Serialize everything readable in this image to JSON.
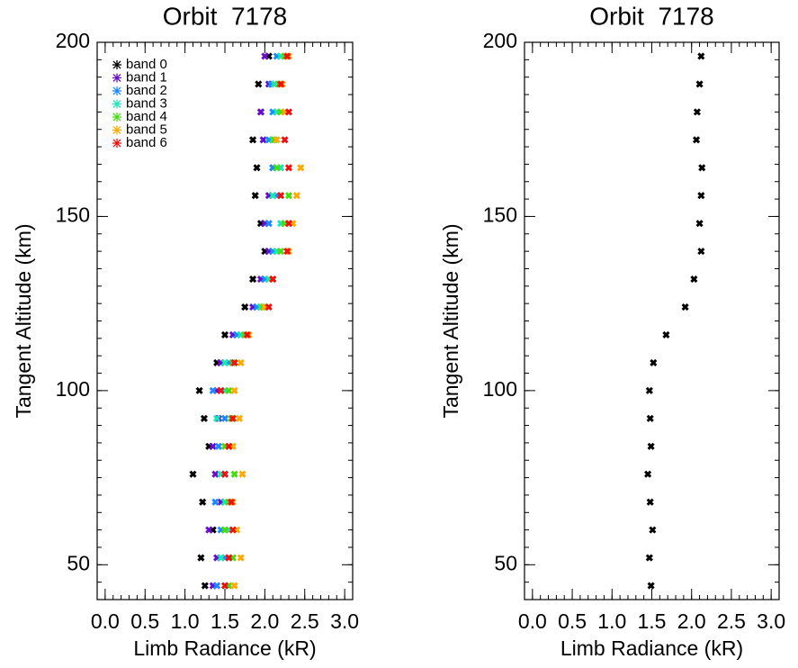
{
  "chart_data": [
    {
      "type": "scatter",
      "title": "Orbit  7178",
      "xlabel": "Limb Radiance (kR)",
      "ylabel": "Tangent Altitude (km)",
      "xlim": [
        -0.1,
        3.1
      ],
      "ylim": [
        40,
        200
      ],
      "xticks": [
        {
          "value": 0,
          "label": "0.0"
        },
        0.5,
        {
          "value": 1,
          "label": "1.0"
        },
        1.5,
        {
          "value": 2,
          "label": "2.0"
        },
        2.5,
        {
          "value": 3,
          "label": "3.0"
        }
      ],
      "yticks": [
        50,
        100,
        150,
        200
      ],
      "legend": "upper left",
      "y": [
        44,
        52,
        60,
        68,
        76,
        84,
        92,
        100,
        108,
        116,
        124,
        132,
        140,
        148,
        156,
        164,
        172,
        180,
        188,
        196
      ],
      "series": [
        {
          "name": "band 0",
          "color": "#000000",
          "x": [
            1.25,
            1.2,
            1.35,
            1.22,
            1.1,
            1.3,
            1.24,
            1.18,
            1.4,
            1.5,
            1.75,
            1.85,
            2.0,
            1.95,
            1.88,
            1.9,
            1.85,
            1.95,
            1.92,
            2.05
          ]
        },
        {
          "name": "band 1",
          "color": "#6a0dcc",
          "x": [
            1.35,
            1.4,
            1.3,
            1.45,
            1.38,
            1.35,
            1.42,
            1.4,
            1.45,
            1.6,
            1.85,
            1.95,
            2.05,
            2.0,
            2.05,
            2.1,
            1.98,
            1.95,
            2.05,
            2.0
          ]
        },
        {
          "name": "band 2",
          "color": "#1e88ff",
          "x": [
            1.4,
            1.5,
            1.45,
            1.38,
            1.5,
            1.42,
            1.5,
            1.35,
            1.55,
            1.65,
            1.9,
            2.0,
            2.1,
            2.05,
            2.15,
            2.1,
            2.05,
            2.1,
            2.08,
            2.15
          ]
        },
        {
          "name": "band 3",
          "color": "#19e6b4",
          "x": [
            1.5,
            1.45,
            1.55,
            1.5,
            1.45,
            1.6,
            1.4,
            1.5,
            1.5,
            1.7,
            1.95,
            2.05,
            2.15,
            2.2,
            2.1,
            2.2,
            2.1,
            2.15,
            2.12,
            2.2
          ]
        },
        {
          "name": "band 4",
          "color": "#44dd11",
          "x": [
            1.55,
            1.6,
            1.5,
            1.55,
            1.62,
            1.5,
            1.58,
            1.55,
            1.6,
            1.75,
            1.98,
            2.1,
            2.2,
            2.25,
            2.3,
            2.15,
            2.12,
            2.2,
            2.18,
            2.25
          ]
        },
        {
          "name": "band 5",
          "color": "#ffaa00",
          "x": [
            1.62,
            1.7,
            1.65,
            1.6,
            1.72,
            1.6,
            1.68,
            1.62,
            1.7,
            1.8,
            2.0,
            2.1,
            2.3,
            2.35,
            2.4,
            2.45,
            2.15,
            2.25,
            2.22,
            2.3
          ]
        },
        {
          "name": "band 6",
          "color": "#ee1111",
          "x": [
            1.5,
            1.55,
            1.6,
            1.58,
            1.5,
            1.55,
            1.6,
            1.45,
            1.62,
            1.78,
            2.05,
            2.1,
            2.28,
            2.3,
            2.2,
            2.3,
            2.25,
            2.3,
            2.2,
            2.28
          ]
        }
      ]
    },
    {
      "type": "scatter",
      "title": "Orbit  7178",
      "xlabel": "Limb Radiance (kR)",
      "ylabel": "Tangent Altitude (km)",
      "xlim": [
        -0.1,
        3.1
      ],
      "ylim": [
        40,
        200
      ],
      "xticks": [
        {
          "value": 0,
          "label": "0.0"
        },
        0.5,
        {
          "value": 1,
          "label": "1.0"
        },
        1.5,
        {
          "value": 2,
          "label": "2.0"
        },
        2.5,
        {
          "value": 3,
          "label": "3.0"
        }
      ],
      "yticks": [
        50,
        100,
        150,
        200
      ],
      "y": [
        44,
        52,
        60,
        68,
        76,
        84,
        92,
        100,
        108,
        116,
        124,
        132,
        140,
        148,
        156,
        164,
        172,
        180,
        188,
        196
      ],
      "series": [
        {
          "color": "#000000",
          "x": [
            1.49,
            1.47,
            1.51,
            1.48,
            1.45,
            1.49,
            1.48,
            1.47,
            1.52,
            1.68,
            1.92,
            2.03,
            2.12,
            2.1,
            2.12,
            2.13,
            2.06,
            2.07,
            2.1,
            2.12
          ]
        }
      ]
    }
  ]
}
